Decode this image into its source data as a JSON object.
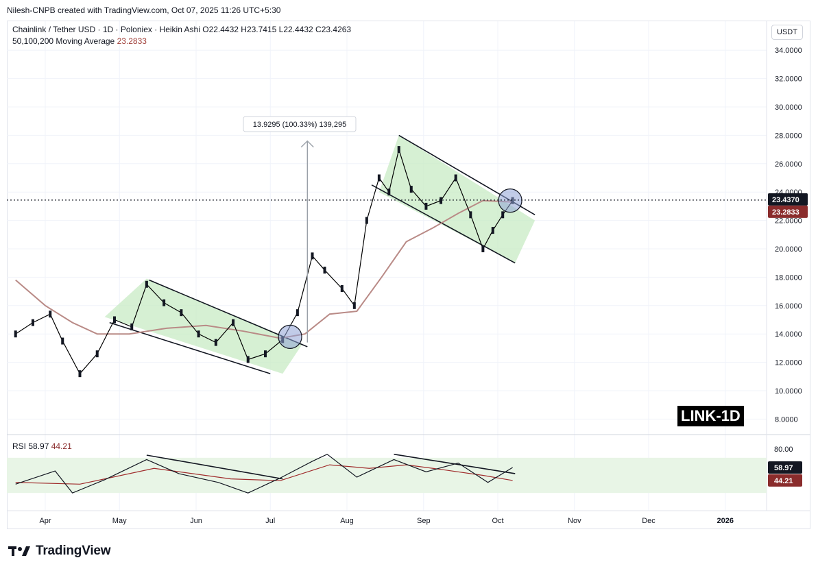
{
  "header": {
    "created_by": "Nilesh-CNPB created with TradingView.com, Oct 07, 2025 11:26 UTC+5:30"
  },
  "legend": {
    "symbol": "Chainlink / Tether USD · 1D · Poloniex · Heikin Ashi",
    "ohlc": "O22.4432  H23.7415  L22.4432  C23.4263",
    "ma_label": "50,100,200 Moving Average",
    "ma_value": "23.2833"
  },
  "currency_badge": "USDT",
  "measure_label": "13.9295 (100.33%) 139,295",
  "watermark": "LINK-1D",
  "rsi_legend": {
    "name": "RSI",
    "value1": "58.97",
    "value2": "44.21"
  },
  "brand": "TradingView",
  "colors": {
    "price_line": "#000000",
    "ma": "#b98a86",
    "channel_fill": "#c8ebc4",
    "rsi_band": "#e8f5e6",
    "rsi_line": "#131722",
    "rsi_ma": "#a02c2c",
    "highlight_circle": "#8fa2d6"
  },
  "chart_data": [
    {
      "type": "line",
      "title": "Chainlink / Tether USD · 1D · Poloniex · Heikin Ashi",
      "ylim": [
        7.0,
        35.0
      ],
      "y_ticks": [
        "34.0000",
        "32.0000",
        "30.0000",
        "28.0000",
        "26.0000",
        "24.0000",
        "22.0000",
        "20.0000",
        "18.0000",
        "16.0000",
        "14.0000",
        "12.0000",
        "10.0000",
        "8.0000"
      ],
      "x_ticks": [
        "Apr",
        "May",
        "Jun",
        "Jul",
        "Aug",
        "Sep",
        "Oct",
        "Nov",
        "Dec",
        "2026"
      ],
      "current_price": "23.4370",
      "ma_label_value": "23.2833",
      "series": [
        {
          "name": "Heikin Ashi close",
          "x": [
            "2025-03-20",
            "2025-03-27",
            "2025-04-03",
            "2025-04-08",
            "2025-04-15",
            "2025-04-22",
            "2025-04-29",
            "2025-05-06",
            "2025-05-12",
            "2025-05-19",
            "2025-05-26",
            "2025-06-02",
            "2025-06-09",
            "2025-06-16",
            "2025-06-22",
            "2025-06-29",
            "2025-07-06",
            "2025-07-12",
            "2025-07-18",
            "2025-07-23",
            "2025-07-30",
            "2025-08-04",
            "2025-08-09",
            "2025-08-14",
            "2025-08-18",
            "2025-08-22",
            "2025-08-27",
            "2025-09-02",
            "2025-09-08",
            "2025-09-14",
            "2025-09-20",
            "2025-09-25",
            "2025-09-29",
            "2025-10-03",
            "2025-10-07"
          ],
          "values": [
            14.0,
            14.8,
            15.4,
            13.5,
            11.2,
            12.6,
            15.0,
            14.5,
            17.5,
            16.2,
            15.5,
            14.0,
            13.4,
            14.8,
            12.2,
            12.6,
            13.6,
            15.5,
            19.5,
            18.5,
            17.2,
            16.0,
            22.0,
            25.0,
            24.0,
            27.0,
            24.2,
            23.0,
            23.4,
            25.0,
            22.4,
            20.0,
            21.3,
            22.4,
            23.4
          ]
        },
        {
          "name": "50,100,200 Moving Average",
          "x": [
            "2025-03-20",
            "2025-04-01",
            "2025-04-12",
            "2025-04-22",
            "2025-05-05",
            "2025-05-20",
            "2025-06-05",
            "2025-06-20",
            "2025-07-05",
            "2025-07-15",
            "2025-07-25",
            "2025-08-05",
            "2025-08-15",
            "2025-08-25",
            "2025-09-05",
            "2025-09-15",
            "2025-09-25",
            "2025-10-07"
          ],
          "values": [
            17.8,
            16.0,
            14.8,
            14.0,
            14.0,
            14.4,
            14.6,
            14.2,
            13.7,
            14.0,
            15.4,
            15.6,
            18.0,
            20.5,
            21.5,
            22.5,
            23.4,
            23.3
          ]
        }
      ],
      "annotations": [
        "13.9295 (100.33%) 139,295"
      ]
    },
    {
      "type": "line",
      "title": "RSI",
      "ylim": [
        0,
        100
      ],
      "y_ticks": [
        "80.00",
        "58.97",
        "44.21"
      ],
      "series": [
        {
          "name": "RSI",
          "x": [
            "2025-03-20",
            "2025-04-05",
            "2025-04-12",
            "2025-04-25",
            "2025-05-12",
            "2025-05-25",
            "2025-06-10",
            "2025-06-22",
            "2025-07-05",
            "2025-07-18",
            "2025-07-24",
            "2025-08-05",
            "2025-08-20",
            "2025-09-02",
            "2025-09-15",
            "2025-09-27",
            "2025-10-07"
          ],
          "values": [
            40,
            55,
            30,
            45,
            68,
            52,
            42,
            30,
            47,
            66,
            74,
            48,
            68,
            54,
            64,
            42,
            58.97
          ]
        },
        {
          "name": "RSI MA",
          "x": [
            "2025-03-20",
            "2025-04-15",
            "2025-05-15",
            "2025-06-15",
            "2025-07-05",
            "2025-07-25",
            "2025-08-10",
            "2025-08-25",
            "2025-09-10",
            "2025-09-25",
            "2025-10-07"
          ],
          "values": [
            42,
            40,
            58,
            46,
            44,
            62,
            58,
            62,
            56,
            50,
            44.21
          ]
        }
      ]
    }
  ]
}
